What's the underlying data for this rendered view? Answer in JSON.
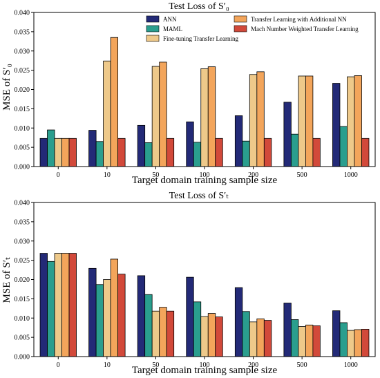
{
  "palette": [
    "#232a77",
    "#2a9e8e",
    "#eec98a",
    "#f3a55b",
    "#d2493a"
  ],
  "chart_data": [
    {
      "type": "bar",
      "title": "Test Loss of S′₀",
      "xlabel": "Target domain training sample size",
      "ylabel": "MSE of S′₀",
      "ylim": [
        0,
        0.04
      ],
      "yticks": [
        "0.000",
        "0.005",
        "0.010",
        "0.015",
        "0.020",
        "0.025",
        "0.030",
        "0.035",
        "0.040"
      ],
      "categories": [
        "0",
        "10",
        "50",
        "100",
        "200",
        "500",
        "1000"
      ],
      "legend": "top",
      "series": [
        {
          "name": "ANN",
          "values": [
            0.0073,
            0.0094,
            0.0107,
            0.0116,
            0.0132,
            0.0167,
            0.0216
          ]
        },
        {
          "name": "MAML",
          "values": [
            0.0095,
            0.0065,
            0.0062,
            0.0063,
            0.0066,
            0.0084,
            0.0104
          ]
        },
        {
          "name": "Fine-tuning Transfer Learning",
          "values": [
            0.0073,
            0.0274,
            0.026,
            0.0254,
            0.0239,
            0.0235,
            0.0233
          ]
        },
        {
          "name": "Transfer Learning with Additional NN",
          "values": [
            0.0073,
            0.0335,
            0.0271,
            0.0259,
            0.0246,
            0.0235,
            0.0236
          ]
        },
        {
          "name": "Mach Number Weighted Transfer Learning",
          "values": [
            0.0073,
            0.0073,
            0.0073,
            0.0073,
            0.0073,
            0.0073,
            0.0073
          ]
        }
      ]
    },
    {
      "type": "bar",
      "title": "Test Loss of S′ₜ",
      "xlabel": "Target domain training sample size",
      "ylabel": "MSE of S′ₜ",
      "ylim": [
        0,
        0.04
      ],
      "yticks": [
        "0.000",
        "0.005",
        "0.010",
        "0.015",
        "0.020",
        "0.025",
        "0.030",
        "0.035",
        "0.040"
      ],
      "categories": [
        "0",
        "10",
        "50",
        "100",
        "200",
        "500",
        "1000"
      ],
      "series": [
        {
          "name": "ANN",
          "values": [
            0.0268,
            0.0229,
            0.021,
            0.0206,
            0.0179,
            0.0139,
            0.0119
          ]
        },
        {
          "name": "MAML",
          "values": [
            0.0247,
            0.0187,
            0.0161,
            0.0142,
            0.0117,
            0.0096,
            0.0088
          ]
        },
        {
          "name": "Fine-tuning Transfer Learning",
          "values": [
            0.0268,
            0.02,
            0.0118,
            0.0104,
            0.009,
            0.0078,
            0.0068
          ]
        },
        {
          "name": "Transfer Learning with Additional NN",
          "values": [
            0.0268,
            0.0253,
            0.0128,
            0.0112,
            0.0098,
            0.0082,
            0.007
          ]
        },
        {
          "name": "Mach Number Weighted Transfer Learning",
          "values": [
            0.0268,
            0.0214,
            0.0118,
            0.0103,
            0.0094,
            0.008,
            0.0071
          ]
        }
      ]
    }
  ]
}
